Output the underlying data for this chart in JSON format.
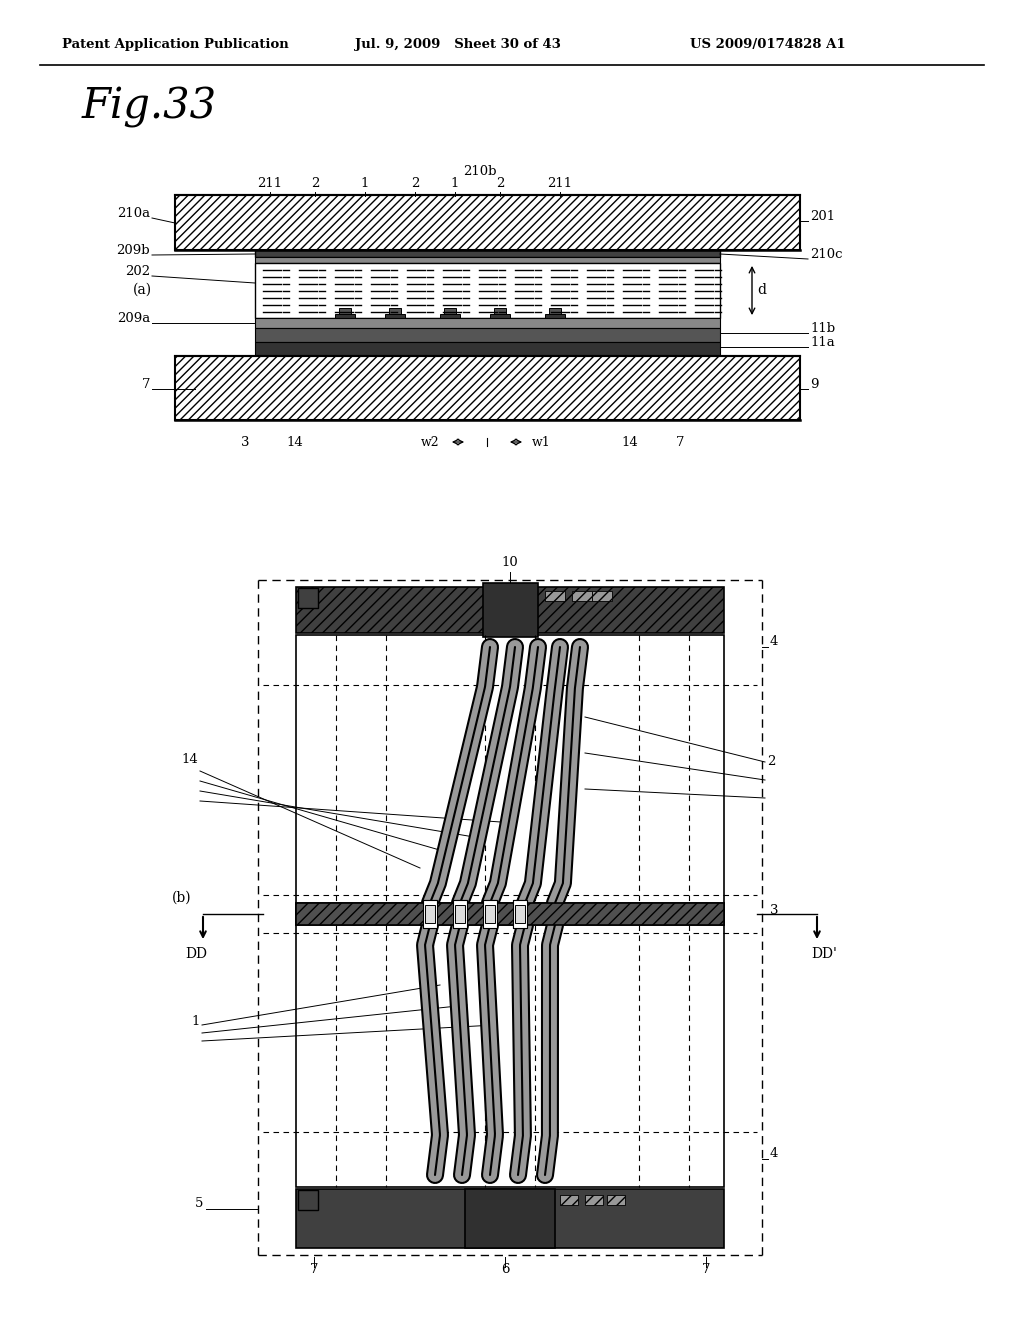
{
  "title": "Fig.33",
  "header_left": "Patent Application Publication",
  "header_mid": "Jul. 9, 2009   Sheet 30 of 43",
  "header_right": "US 2009/0174828 A1",
  "bg_color": "#ffffff",
  "line_color": "#000000"
}
